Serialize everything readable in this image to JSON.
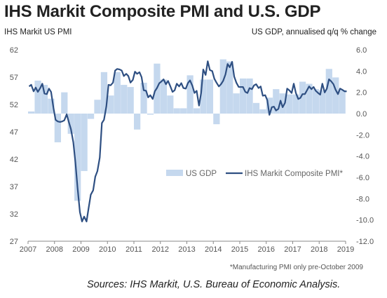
{
  "title": "IHS Markit Composite PMI and U.S. GDP",
  "chart_data": {
    "type": "bar+line",
    "ylabel_left": "IHS Markit  US PMI",
    "ylabel_right": "US GDP, annualised q/q % change",
    "y_left_ticks": [
      27,
      32,
      37,
      42,
      47,
      52,
      57,
      62
    ],
    "y_left_lim": [
      27,
      62
    ],
    "y_right_ticks": [
      "-12.0",
      "-10.0",
      "-8.0",
      "-6.0",
      "-4.0",
      "-2.0",
      "0.0",
      "2.0",
      "4.0",
      "6.0"
    ],
    "y_right_lim": [
      -12,
      6
    ],
    "x_ticks": [
      "2007",
      "2008",
      "2009",
      "2010",
      "2011",
      "2012",
      "2013",
      "2014",
      "2015",
      "2016",
      "2017",
      "2018",
      "2019"
    ],
    "x_range": [
      2007.0,
      2019.0
    ],
    "legend": [
      "US GDP",
      "IHS Markit Composite PMI*"
    ],
    "gdp_quarters": [
      [
        2007.0,
        0.2
      ],
      [
        2007.25,
        3.1
      ],
      [
        2007.5,
        2.7
      ],
      [
        2007.75,
        1.4
      ],
      [
        2008.0,
        -2.7
      ],
      [
        2008.25,
        2.0
      ],
      [
        2008.5,
        -1.9
      ],
      [
        2008.75,
        -8.2
      ],
      [
        2009.0,
        -5.4
      ],
      [
        2009.25,
        -0.5
      ],
      [
        2009.5,
        1.3
      ],
      [
        2009.75,
        3.9
      ],
      [
        2010.0,
        1.7
      ],
      [
        2010.25,
        3.9
      ],
      [
        2010.5,
        2.7
      ],
      [
        2010.75,
        2.5
      ],
      [
        2011.0,
        -1.5
      ],
      [
        2011.25,
        2.9
      ],
      [
        2011.5,
        -0.1
      ],
      [
        2011.75,
        4.7
      ],
      [
        2012.0,
        3.2
      ],
      [
        2012.25,
        1.7
      ],
      [
        2012.5,
        0.5
      ],
      [
        2012.75,
        0.5
      ],
      [
        2013.0,
        3.6
      ],
      [
        2013.25,
        0.5
      ],
      [
        2013.5,
        3.2
      ],
      [
        2013.75,
        3.2
      ],
      [
        2014.0,
        -1.0
      ],
      [
        2014.25,
        5.1
      ],
      [
        2014.5,
        4.9
      ],
      [
        2014.75,
        1.9
      ],
      [
        2015.0,
        3.3
      ],
      [
        2015.25,
        3.3
      ],
      [
        2015.5,
        1.0
      ],
      [
        2015.75,
        0.4
      ],
      [
        2016.0,
        1.5
      ],
      [
        2016.25,
        2.3
      ],
      [
        2016.5,
        1.9
      ],
      [
        2016.75,
        1.8
      ],
      [
        2017.0,
        1.8
      ],
      [
        2017.25,
        3.0
      ],
      [
        2017.5,
        2.8
      ],
      [
        2017.75,
        2.3
      ],
      [
        2018.0,
        2.2
      ],
      [
        2018.25,
        4.2
      ],
      [
        2018.5,
        3.4
      ],
      [
        2018.75,
        2.2
      ]
    ],
    "pmi_monthly": [
      [
        2007.0,
        55.3
      ],
      [
        2007.08,
        55.6
      ],
      [
        2007.17,
        54.4
      ],
      [
        2007.25,
        55.1
      ],
      [
        2007.33,
        54.3
      ],
      [
        2007.42,
        55.0
      ],
      [
        2007.5,
        55.8
      ],
      [
        2007.58,
        54.0
      ],
      [
        2007.67,
        53.9
      ],
      [
        2007.75,
        54.9
      ],
      [
        2007.83,
        54.3
      ],
      [
        2007.92,
        51.4
      ],
      [
        2008.0,
        49.2
      ],
      [
        2008.08,
        48.9
      ],
      [
        2008.17,
        48.8
      ],
      [
        2008.25,
        48.9
      ],
      [
        2008.33,
        49.1
      ],
      [
        2008.42,
        50.2
      ],
      [
        2008.5,
        48.8
      ],
      [
        2008.58,
        47.5
      ],
      [
        2008.67,
        45.1
      ],
      [
        2008.75,
        41.4
      ],
      [
        2008.83,
        36.8
      ],
      [
        2008.92,
        32.3
      ],
      [
        2009.0,
        30.6
      ],
      [
        2009.08,
        31.5
      ],
      [
        2009.17,
        30.6
      ],
      [
        2009.25,
        33.1
      ],
      [
        2009.33,
        35.5
      ],
      [
        2009.42,
        36.3
      ],
      [
        2009.5,
        38.8
      ],
      [
        2009.58,
        39.8
      ],
      [
        2009.67,
        42.3
      ],
      [
        2009.75,
        48.6
      ],
      [
        2009.83,
        49.2
      ],
      [
        2009.92,
        51.7
      ],
      [
        2010.0,
        55.6
      ],
      [
        2010.08,
        55.5
      ],
      [
        2010.17,
        56.0
      ],
      [
        2010.25,
        58.2
      ],
      [
        2010.33,
        58.5
      ],
      [
        2010.42,
        58.4
      ],
      [
        2010.5,
        58.2
      ],
      [
        2010.58,
        57.2
      ],
      [
        2010.67,
        57.6
      ],
      [
        2010.75,
        57.2
      ],
      [
        2010.83,
        56.0
      ],
      [
        2010.92,
        56.5
      ],
      [
        2011.0,
        58.0
      ],
      [
        2011.08,
        57.6
      ],
      [
        2011.17,
        57.9
      ],
      [
        2011.25,
        57.0
      ],
      [
        2011.33,
        54.6
      ],
      [
        2011.42,
        54.5
      ],
      [
        2011.5,
        53.3
      ],
      [
        2011.58,
        53.7
      ],
      [
        2011.67,
        53.0
      ],
      [
        2011.75,
        54.4
      ],
      [
        2011.83,
        55.0
      ],
      [
        2011.92,
        55.9
      ],
      [
        2012.0,
        56.2
      ],
      [
        2012.08,
        56.6
      ],
      [
        2012.17,
        55.7
      ],
      [
        2012.25,
        56.3
      ],
      [
        2012.33,
        55.4
      ],
      [
        2012.42,
        54.3
      ],
      [
        2012.5,
        54.6
      ],
      [
        2012.58,
        55.8
      ],
      [
        2012.67,
        55.3
      ],
      [
        2012.75,
        55.9
      ],
      [
        2012.83,
        55.0
      ],
      [
        2012.92,
        54.9
      ],
      [
        2013.0,
        55.9
      ],
      [
        2013.08,
        56.4
      ],
      [
        2013.17,
        55.4
      ],
      [
        2013.25,
        54.1
      ],
      [
        2013.33,
        54.5
      ],
      [
        2013.42,
        51.8
      ],
      [
        2013.5,
        54.1
      ],
      [
        2013.58,
        58.4
      ],
      [
        2013.67,
        57.4
      ],
      [
        2013.75,
        59.9
      ],
      [
        2013.83,
        58.3
      ],
      [
        2013.92,
        58.1
      ],
      [
        2014.0,
        56.7
      ],
      [
        2014.08,
        56.0
      ],
      [
        2014.17,
        55.3
      ],
      [
        2014.25,
        55.7
      ],
      [
        2014.33,
        56.3
      ],
      [
        2014.42,
        57.5
      ],
      [
        2014.5,
        59.4
      ],
      [
        2014.58,
        58.8
      ],
      [
        2014.67,
        59.8
      ],
      [
        2014.75,
        57.1
      ],
      [
        2014.83,
        56.0
      ],
      [
        2014.92,
        55.2
      ],
      [
        2015.0,
        55.2
      ],
      [
        2015.08,
        55.2
      ],
      [
        2015.17,
        54.3
      ],
      [
        2015.25,
        54.1
      ],
      [
        2015.33,
        55.0
      ],
      [
        2015.42,
        54.8
      ],
      [
        2015.5,
        55.5
      ],
      [
        2015.58,
        55.7
      ],
      [
        2015.67,
        55.0
      ],
      [
        2015.75,
        55.3
      ],
      [
        2015.83,
        53.6
      ],
      [
        2015.92,
        53.7
      ],
      [
        2016.0,
        52.8
      ],
      [
        2016.08,
        50.1
      ],
      [
        2016.17,
        51.5
      ],
      [
        2016.25,
        51.6
      ],
      [
        2016.33,
        50.9
      ],
      [
        2016.42,
        51.2
      ],
      [
        2016.5,
        52.7
      ],
      [
        2016.58,
        51.5
      ],
      [
        2016.67,
        52.3
      ],
      [
        2016.75,
        54.9
      ],
      [
        2016.83,
        54.6
      ],
      [
        2016.92,
        54.1
      ],
      [
        2017.0,
        55.8
      ],
      [
        2017.08,
        54.1
      ],
      [
        2017.17,
        53.0
      ],
      [
        2017.25,
        53.2
      ],
      [
        2017.33,
        53.9
      ],
      [
        2017.42,
        53.9
      ],
      [
        2017.5,
        54.6
      ],
      [
        2017.58,
        55.3
      ],
      [
        2017.67,
        54.8
      ],
      [
        2017.75,
        55.2
      ],
      [
        2017.83,
        54.5
      ],
      [
        2017.92,
        54.1
      ],
      [
        2018.0,
        53.8
      ],
      [
        2018.08,
        55.8
      ],
      [
        2018.17,
        54.2
      ],
      [
        2018.25,
        54.9
      ],
      [
        2018.33,
        56.6
      ],
      [
        2018.42,
        56.2
      ],
      [
        2018.5,
        55.7
      ],
      [
        2018.58,
        54.7
      ],
      [
        2018.67,
        53.9
      ],
      [
        2018.75,
        54.9
      ],
      [
        2018.83,
        54.7
      ],
      [
        2018.92,
        54.4
      ],
      [
        2019.0,
        54.4
      ]
    ],
    "footnote": "*Manufacturing PMI only pre-October 2009"
  },
  "sources": "Sources:  IHS Markit, U.S. Bureau of Economic Analysis.",
  "colors": {
    "bar": "#c5d8ee",
    "line": "#2e4f82",
    "axis": "#888888",
    "grid": "#ffffff"
  }
}
